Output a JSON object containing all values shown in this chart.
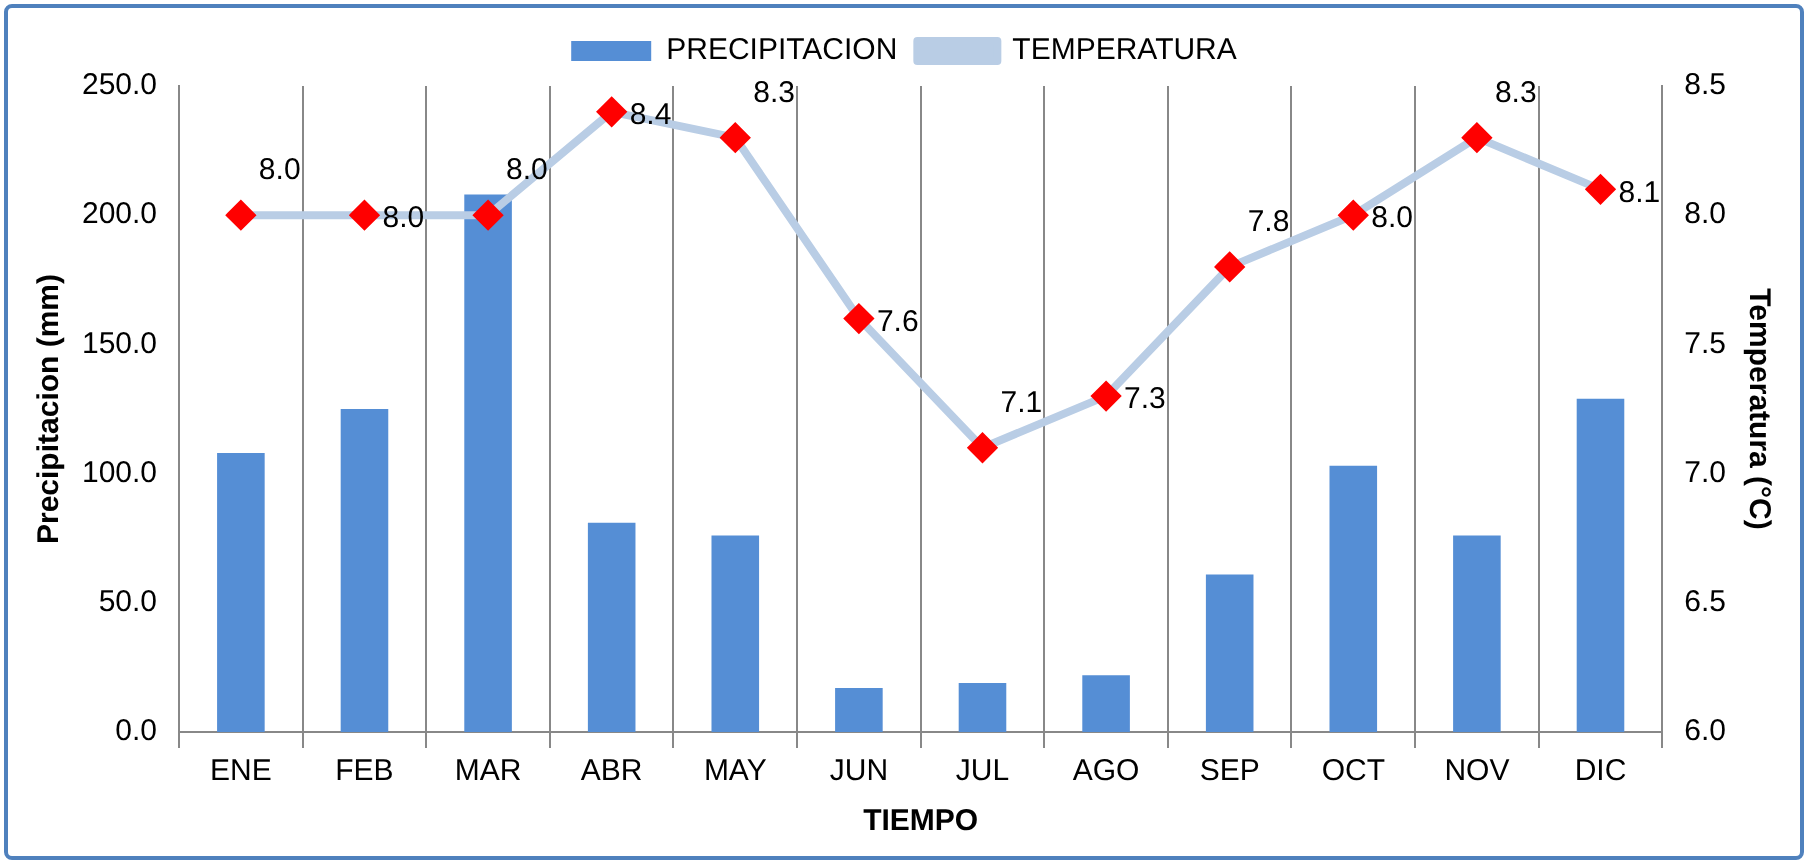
{
  "chart_data": {
    "type": "bar",
    "xlabel": "TIEMPO",
    "ylabel": "Precipitacion (mm)",
    "y2label": "Temperatura (°C)",
    "categories": [
      "ENE",
      "FEB",
      "MAR",
      "ABR",
      "MAY",
      "JUN",
      "JUL",
      "AGO",
      "SEP",
      "OCT",
      "NOV",
      "DIC"
    ],
    "series": [
      {
        "name": "PRECIPITACION",
        "color": "#558ed5",
        "values": [
          108,
          125,
          208,
          81,
          76,
          17,
          19,
          22,
          61,
          103,
          76,
          129
        ]
      },
      {
        "name": "TEMPERATURA",
        "type": "line",
        "axis": "y2",
        "color": "#b9cde5",
        "marker": "diamond",
        "colors": [
          "#ff0000",
          "#ff0000",
          "#ff0000",
          "#ff0000",
          "#ff0000",
          "#ff0000",
          "#ff0000",
          "#ff0000",
          "#ff0000",
          "#ff0000",
          "#ff0000",
          "#ff0000"
        ],
        "values": [
          8.0,
          8.0,
          8.0,
          8.4,
          8.3,
          7.6,
          7.1,
          7.3,
          7.8,
          8.0,
          8.3,
          8.1
        ],
        "value_labels": [
          "8.0",
          "8.0",
          "8.0",
          "8.4",
          "8.3",
          "7.6",
          "7.1",
          "7.3",
          "7.8",
          "8.0",
          "8.3",
          "8.1"
        ]
      }
    ],
    "ylim": [
      0,
      250
    ],
    "yticks": [
      {
        "value": 0,
        "label": "0.0"
      },
      {
        "value": 50,
        "label": "50.0"
      },
      {
        "value": 100,
        "label": "100.0"
      },
      {
        "value": 150,
        "label": "150.0"
      },
      {
        "value": 200,
        "label": "200.0"
      },
      {
        "value": 250,
        "label": "250.0"
      }
    ],
    "y2lim": [
      6,
      8.5
    ],
    "y2ticks": [
      {
        "value": 6,
        "label": "6.0"
      },
      6.5,
      {
        "value": 7,
        "label": "7.0"
      },
      7.5,
      {
        "value": 8,
        "label": "8.0"
      },
      8.5
    ],
    "grid": "x",
    "legend": "top"
  }
}
